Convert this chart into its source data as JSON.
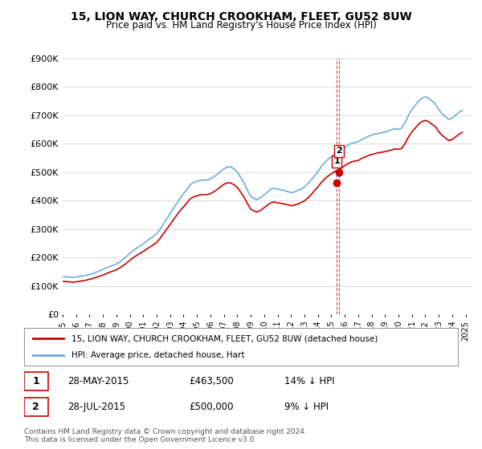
{
  "title": "15, LION WAY, CHURCH CROOKHAM, FLEET, GU52 8UW",
  "subtitle": "Price paid vs. HM Land Registry's House Price Index (HPI)",
  "legend_line1": "15, LION WAY, CHURCH CROOKHAM, FLEET, GU52 8UW (detached house)",
  "legend_line2": "HPI: Average price, detached house, Hart",
  "footnote": "Contains HM Land Registry data © Crown copyright and database right 2024.\nThis data is licensed under the Open Government Licence v3.0.",
  "table_rows": [
    {
      "num": "1",
      "date": "28-MAY-2015",
      "price": "£463,500",
      "hpi": "14% ↓ HPI"
    },
    {
      "num": "2",
      "date": "28-JUL-2015",
      "price": "£500,000",
      "hpi": "9% ↓ HPI"
    }
  ],
  "hpi_color": "#6baed6",
  "price_color": "#cc0000",
  "marker_color": "#cc0000",
  "vline_color": "#cc0000",
  "ylim": [
    0,
    900000
  ],
  "yticks": [
    0,
    100000,
    200000,
    300000,
    400000,
    500000,
    600000,
    700000,
    800000,
    900000
  ],
  "ytick_labels": [
    "£0",
    "£100K",
    "£200K",
    "£300K",
    "£400K",
    "£500K",
    "£600K",
    "£700K",
    "£800K",
    "£900K"
  ],
  "xmin": 1995.0,
  "xmax": 2025.5,
  "transaction1_x": 2015.4,
  "transaction1_y": 463500,
  "transaction2_x": 2015.58,
  "transaction2_y": 500000,
  "hpi_x": [
    1995.0,
    1995.25,
    1995.5,
    1995.75,
    1996.0,
    1996.25,
    1996.5,
    1996.75,
    1997.0,
    1997.25,
    1997.5,
    1997.75,
    1998.0,
    1998.25,
    1998.5,
    1998.75,
    1999.0,
    1999.25,
    1999.5,
    1999.75,
    2000.0,
    2000.25,
    2000.5,
    2000.75,
    2001.0,
    2001.25,
    2001.5,
    2001.75,
    2002.0,
    2002.25,
    2002.5,
    2002.75,
    2003.0,
    2003.25,
    2003.5,
    2003.75,
    2004.0,
    2004.25,
    2004.5,
    2004.75,
    2005.0,
    2005.25,
    2005.5,
    2005.75,
    2006.0,
    2006.25,
    2006.5,
    2006.75,
    2007.0,
    2007.25,
    2007.5,
    2007.75,
    2008.0,
    2008.25,
    2008.5,
    2008.75,
    2009.0,
    2009.25,
    2009.5,
    2009.75,
    2010.0,
    2010.25,
    2010.5,
    2010.75,
    2011.0,
    2011.25,
    2011.5,
    2011.75,
    2012.0,
    2012.25,
    2012.5,
    2012.75,
    2013.0,
    2013.25,
    2013.5,
    2013.75,
    2014.0,
    2014.25,
    2014.5,
    2014.75,
    2015.0,
    2015.25,
    2015.5,
    2015.75,
    2016.0,
    2016.25,
    2016.5,
    2016.75,
    2017.0,
    2017.25,
    2017.5,
    2017.75,
    2018.0,
    2018.25,
    2018.5,
    2018.75,
    2019.0,
    2019.25,
    2019.5,
    2019.75,
    2020.0,
    2020.25,
    2020.5,
    2020.75,
    2021.0,
    2021.25,
    2021.5,
    2021.75,
    2022.0,
    2022.25,
    2022.5,
    2022.75,
    2023.0,
    2023.25,
    2023.5,
    2023.75,
    2024.0,
    2024.25,
    2024.5,
    2024.75
  ],
  "hpi_y": [
    133000,
    132000,
    131000,
    130000,
    131000,
    133000,
    135000,
    137000,
    140000,
    143000,
    148000,
    153000,
    158000,
    163000,
    168000,
    172000,
    177000,
    184000,
    193000,
    203000,
    215000,
    224000,
    232000,
    240000,
    248000,
    257000,
    266000,
    274000,
    284000,
    299000,
    317000,
    336000,
    354000,
    373000,
    391000,
    409000,
    424000,
    440000,
    456000,
    464000,
    468000,
    471000,
    472000,
    472000,
    476000,
    483000,
    492000,
    502000,
    512000,
    518000,
    519000,
    512000,
    500000,
    482000,
    462000,
    437000,
    415000,
    407000,
    404000,
    410000,
    420000,
    430000,
    440000,
    443000,
    440000,
    438000,
    435000,
    432000,
    428000,
    430000,
    435000,
    440000,
    447000,
    459000,
    472000,
    487000,
    502000,
    519000,
    534000,
    545000,
    554000,
    563000,
    570000,
    577000,
    587000,
    595000,
    601000,
    604000,
    607000,
    614000,
    620000,
    626000,
    630000,
    634000,
    636000,
    638000,
    641000,
    645000,
    649000,
    653000,
    650000,
    655000,
    675000,
    700000,
    720000,
    735000,
    750000,
    760000,
    765000,
    760000,
    750000,
    740000,
    720000,
    705000,
    695000,
    685000,
    690000,
    700000,
    710000,
    718000
  ],
  "price_x": [
    1995.0,
    1995.25,
    1995.5,
    1995.75,
    1996.0,
    1996.25,
    1996.5,
    1996.75,
    1997.0,
    1997.25,
    1997.5,
    1997.75,
    1998.0,
    1998.25,
    1998.5,
    1998.75,
    1999.0,
    1999.25,
    1999.5,
    1999.75,
    2000.0,
    2000.25,
    2000.5,
    2000.75,
    2001.0,
    2001.25,
    2001.5,
    2001.75,
    2002.0,
    2002.25,
    2002.5,
    2002.75,
    2003.0,
    2003.25,
    2003.5,
    2003.75,
    2004.0,
    2004.25,
    2004.5,
    2004.75,
    2005.0,
    2005.25,
    2005.5,
    2005.75,
    2006.0,
    2006.25,
    2006.5,
    2006.75,
    2007.0,
    2007.25,
    2007.5,
    2007.75,
    2008.0,
    2008.25,
    2008.5,
    2008.75,
    2009.0,
    2009.25,
    2009.5,
    2009.75,
    2010.0,
    2010.25,
    2010.5,
    2010.75,
    2011.0,
    2011.25,
    2011.5,
    2011.75,
    2012.0,
    2012.25,
    2012.5,
    2012.75,
    2013.0,
    2013.25,
    2013.5,
    2013.75,
    2014.0,
    2014.25,
    2014.5,
    2014.75,
    2015.0,
    2015.25,
    2015.5,
    2015.75,
    2016.0,
    2016.25,
    2016.5,
    2016.75,
    2017.0,
    2017.25,
    2017.5,
    2017.75,
    2018.0,
    2018.25,
    2018.5,
    2018.75,
    2019.0,
    2019.25,
    2019.5,
    2019.75,
    2020.0,
    2020.25,
    2020.5,
    2020.75,
    2021.0,
    2021.25,
    2021.5,
    2021.75,
    2022.0,
    2022.25,
    2022.5,
    2022.75,
    2023.0,
    2023.25,
    2023.5,
    2023.75,
    2024.0,
    2024.25,
    2024.5,
    2024.75
  ],
  "price_y": [
    116000,
    115000,
    114000,
    113000,
    114000,
    116000,
    118000,
    120000,
    123000,
    126000,
    130000,
    134000,
    138000,
    143000,
    148000,
    152000,
    157000,
    163000,
    171000,
    180000,
    190000,
    199000,
    207000,
    214000,
    221000,
    229000,
    237000,
    244000,
    253000,
    267000,
    283000,
    300000,
    316000,
    333000,
    349000,
    365000,
    378000,
    392000,
    406000,
    413000,
    417000,
    420000,
    421000,
    421000,
    424000,
    431000,
    439000,
    448000,
    457000,
    462000,
    462000,
    456000,
    446000,
    430000,
    412000,
    390000,
    370000,
    363000,
    360000,
    366000,
    375000,
    384000,
    392000,
    395000,
    392000,
    390000,
    388000,
    385000,
    382000,
    384000,
    388000,
    393000,
    399000,
    409000,
    421000,
    435000,
    448000,
    463000,
    476000,
    486000,
    494000,
    502000,
    508000,
    514000,
    523000,
    530000,
    536000,
    539000,
    541000,
    548000,
    553000,
    558000,
    562000,
    565000,
    568000,
    570000,
    572000,
    575000,
    578000,
    582000,
    580000,
    584000,
    602000,
    624000,
    642000,
    655000,
    669000,
    678000,
    682000,
    677000,
    668000,
    660000,
    642000,
    629000,
    620000,
    611000,
    615000,
    624000,
    633000,
    640000
  ]
}
